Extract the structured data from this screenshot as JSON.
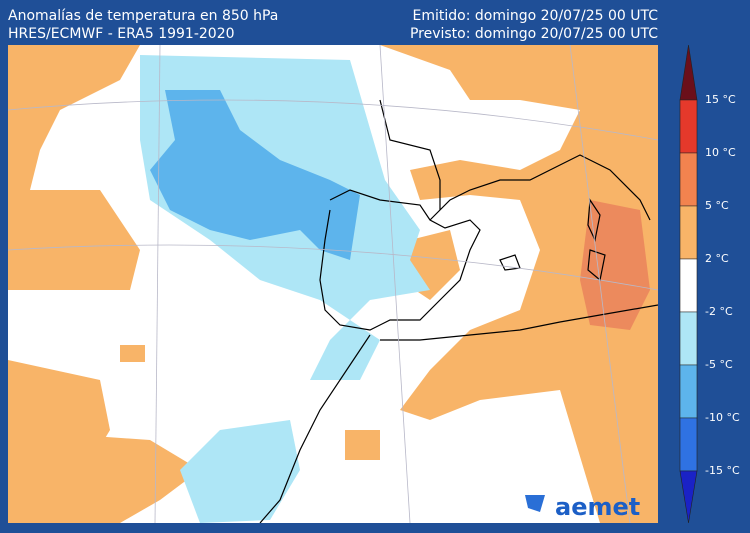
{
  "header": {
    "title": "Anomalías de temperatura en 850 hPa",
    "subtitle": "HRES/ECMWF - ERA5 1991-2020",
    "issued": "Emitido: domingo 20/07/25 00 UTC",
    "forecast": "Previsto: domingo 20/07/25 00 UTC"
  },
  "colorbar": {
    "colors": [
      "#6b0f1a",
      "#e5392b",
      "#f2834f",
      "#f8b468",
      "#ffffff",
      "#aee6f6",
      "#5db4ec",
      "#2f72e2",
      "#1a22c6"
    ],
    "labels": [
      "15 °C",
      "10 °C",
      "5 °C",
      "2 °C",
      "-2 °C",
      "-5 °C",
      "-10 °C",
      "-15 °C"
    ]
  },
  "logo": "aemet"
}
